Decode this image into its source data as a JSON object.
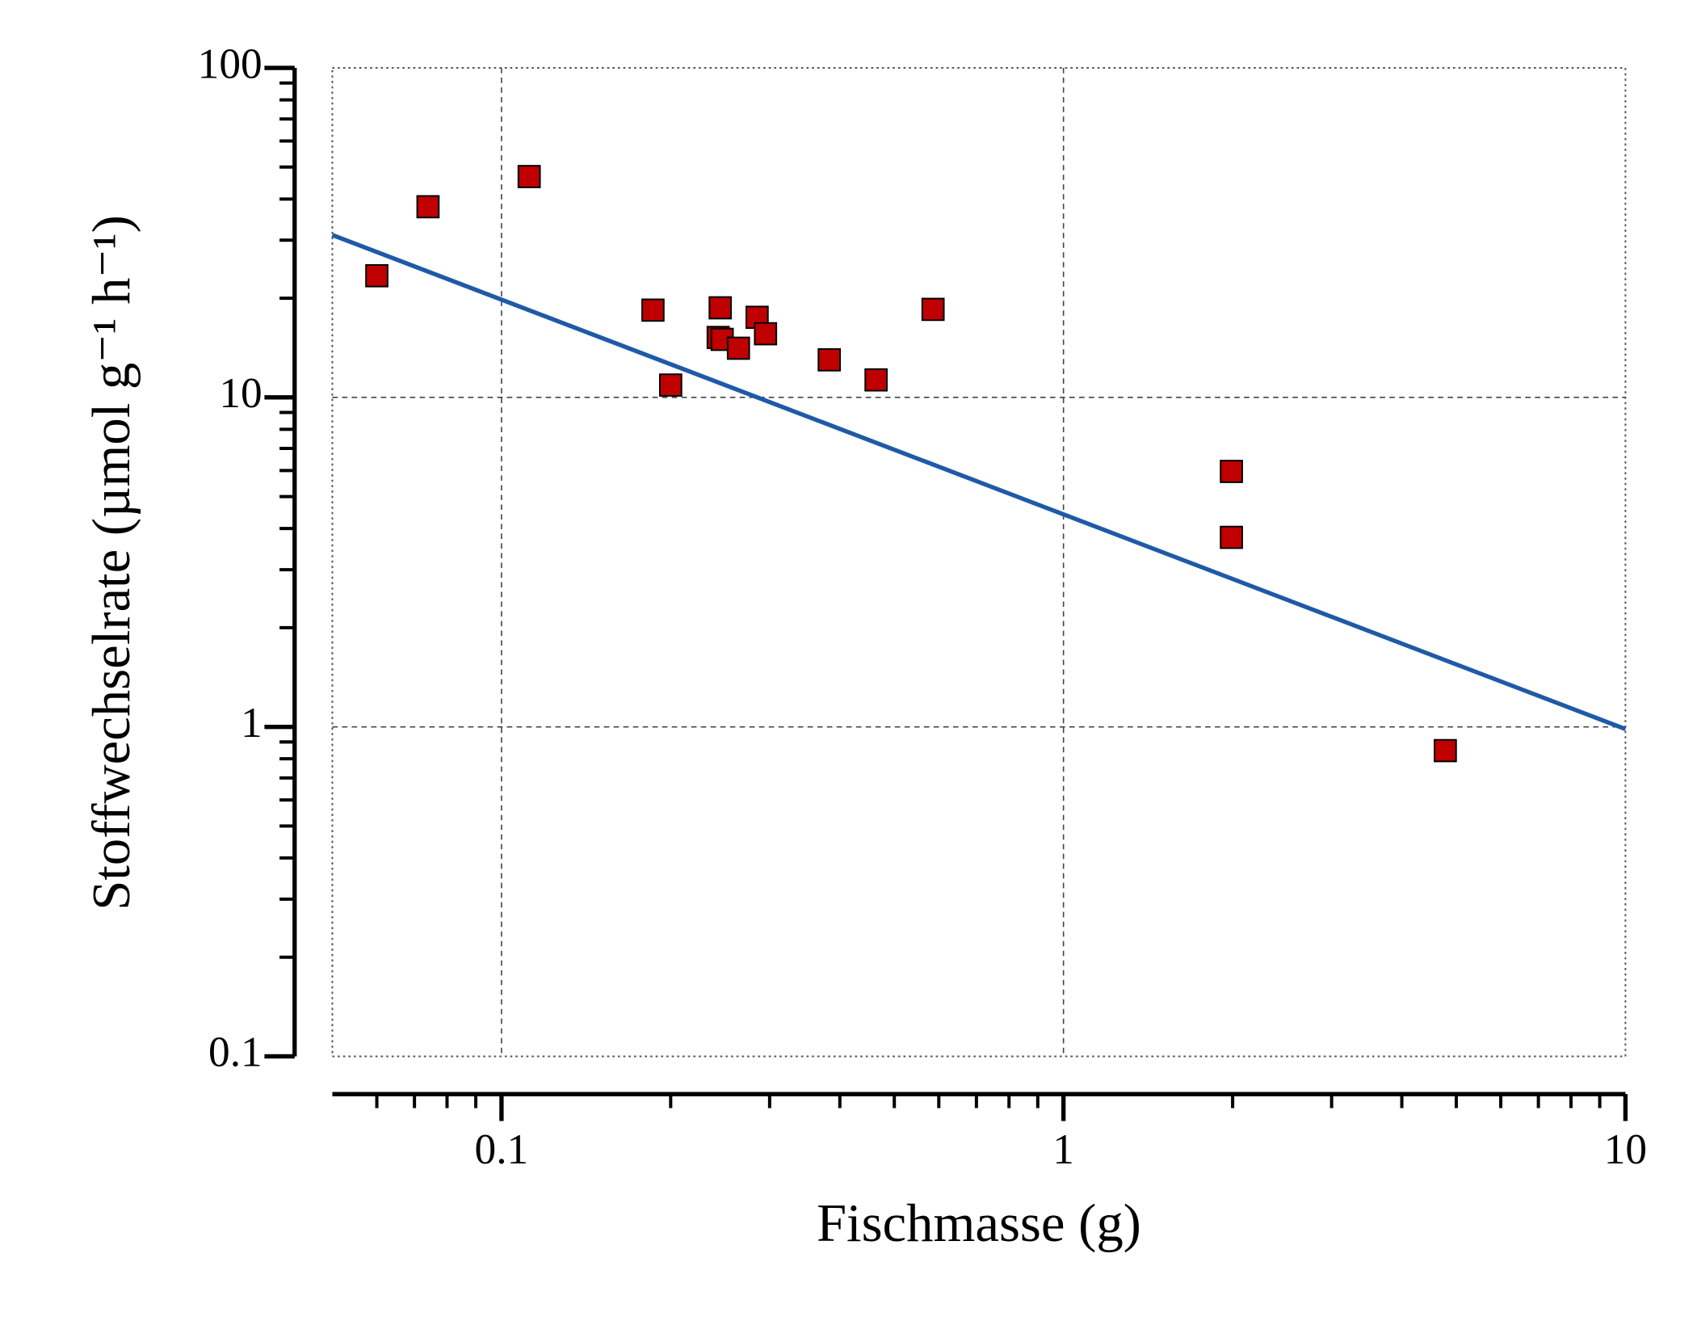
{
  "chart_data": {
    "type": "scatter",
    "x_label": "Fischmasse (g)",
    "y_label": "Stoffwechselrate (µmol g⁻¹ h⁻¹)",
    "xscale": "log",
    "yscale": "log",
    "xlim": [
      0.05,
      10
    ],
    "ylim": [
      0.1,
      100
    ],
    "xticks": [
      0.1,
      1,
      10
    ],
    "yticks": [
      0.1,
      1,
      10,
      100
    ],
    "xminorticks": [
      0.06,
      0.07,
      0.08,
      0.09,
      0.2,
      0.3,
      0.4,
      0.5,
      0.6,
      0.7,
      0.8,
      0.9,
      2,
      3,
      4,
      5,
      6,
      7,
      8,
      9
    ],
    "yminorticks": [
      0.2,
      0.3,
      0.4,
      0.5,
      0.6,
      0.7,
      0.8,
      0.9,
      2,
      3,
      4,
      5,
      6,
      7,
      8,
      9,
      20,
      30,
      40,
      50,
      60,
      70,
      80,
      90
    ],
    "grid": true,
    "series": [
      {
        "type": "scatter",
        "color": "#c00000",
        "x": [
          0.06,
          0.074,
          0.112,
          0.186,
          0.2,
          0.245,
          0.243,
          0.247,
          0.264,
          0.285,
          0.295,
          0.383,
          0.464,
          0.586,
          1.99,
          1.99,
          4.78
        ],
        "values": [
          23.4,
          37.9,
          46.8,
          18.4,
          10.9,
          18.7,
          15.2,
          15.0,
          14.1,
          17.5,
          15.6,
          13.0,
          11.3,
          18.5,
          5.96,
          3.76,
          0.847
        ]
      },
      {
        "type": "line",
        "color": "#1f5aa6",
        "x": [
          0.05,
          10
        ],
        "values": [
          31.1,
          0.985
        ]
      }
    ]
  }
}
